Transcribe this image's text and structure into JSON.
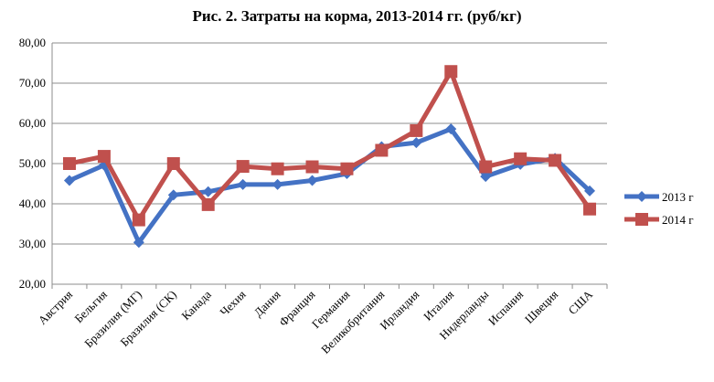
{
  "chart_data": {
    "type": "line",
    "title": "Рис. 2. Затраты на корма, 2013-2014 гг. (руб/кг)",
    "xlabel": "",
    "ylabel": "",
    "ylim": [
      20,
      80
    ],
    "yticks": [
      "20,00",
      "30,00",
      "40,00",
      "50,00",
      "60,00",
      "70,00",
      "80,00"
    ],
    "grid": true,
    "legend": "right",
    "categories": [
      "Австрия",
      "Бельгия",
      "Бразилия (МГ)",
      "Бразилия (СК)",
      "Канада",
      "Чехия",
      "Дания",
      "Франция",
      "Германия",
      "Великобритания",
      "Ирландия",
      "Италия",
      "Нидерланды",
      "Испания",
      "Швеция",
      "США"
    ],
    "series": [
      {
        "name": "2013 г",
        "color": "#4472C4",
        "marker": "diamond",
        "values": [
          45.8,
          49.6,
          30.4,
          42.2,
          43.0,
          44.8,
          44.8,
          45.8,
          47.5,
          54.2,
          55.2,
          58.6,
          46.8,
          49.8,
          51.3,
          43.2
        ]
      },
      {
        "name": "2014 г",
        "color": "#C0504D",
        "marker": "square",
        "values": [
          50.0,
          51.8,
          36.0,
          50.0,
          39.8,
          49.3,
          48.7,
          49.2,
          48.7,
          53.3,
          58.2,
          72.9,
          49.2,
          51.2,
          50.8,
          38.7
        ]
      }
    ]
  }
}
